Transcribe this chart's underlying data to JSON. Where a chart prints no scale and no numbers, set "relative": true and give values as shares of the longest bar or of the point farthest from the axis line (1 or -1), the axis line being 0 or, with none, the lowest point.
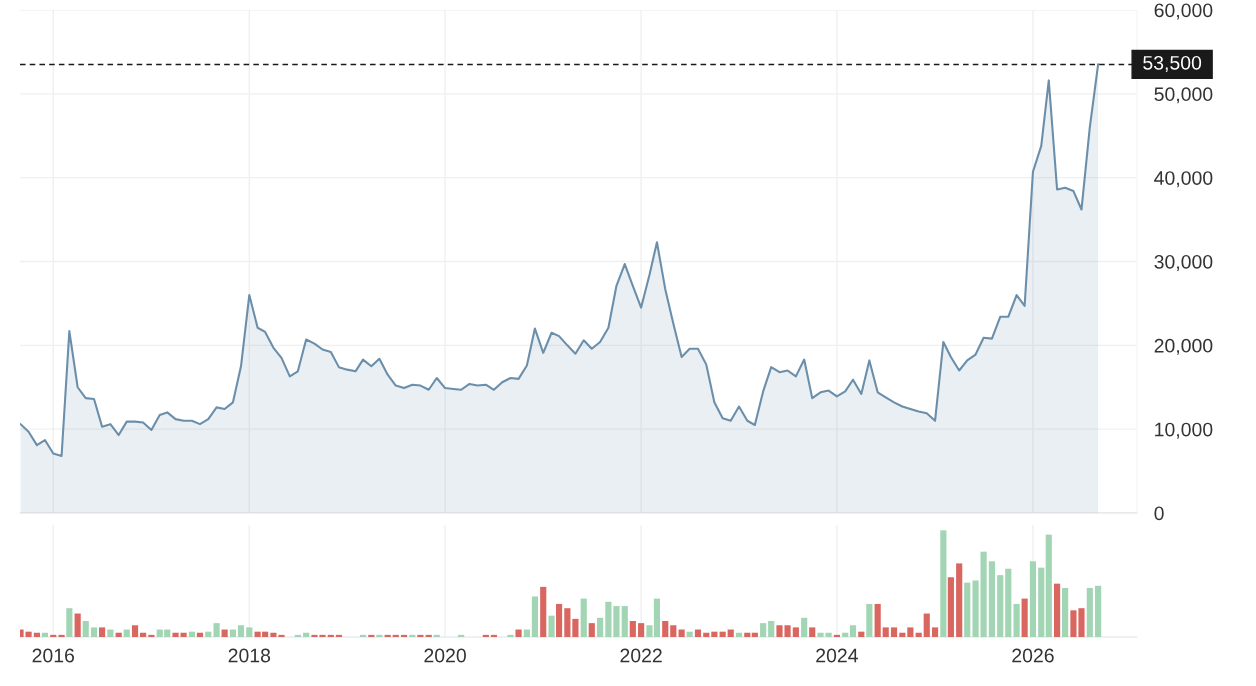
{
  "chart_data": [
    {
      "type": "area",
      "x": [
        "2015-09",
        "2015-10",
        "2015-11",
        "2015-12",
        "2016-01",
        "2016-02",
        "2016-03",
        "2016-04",
        "2016-05",
        "2016-06",
        "2016-07",
        "2016-08",
        "2016-09",
        "2016-10",
        "2016-11",
        "2016-12",
        "2017-01",
        "2017-02",
        "2017-03",
        "2017-04",
        "2017-05",
        "2017-06",
        "2017-07",
        "2017-08",
        "2017-09",
        "2017-10",
        "2017-11",
        "2017-12",
        "2018-01",
        "2018-02",
        "2018-03",
        "2018-04",
        "2018-05",
        "2018-06",
        "2018-07",
        "2018-08",
        "2018-09",
        "2018-10",
        "2018-11",
        "2018-12",
        "2019-01",
        "2019-02",
        "2019-03",
        "2019-04",
        "2019-05",
        "2019-06",
        "2019-07",
        "2019-08",
        "2019-09",
        "2019-10",
        "2019-11",
        "2019-12",
        "2020-01",
        "2020-02",
        "2020-03",
        "2020-04",
        "2020-05",
        "2020-06",
        "2020-07",
        "2020-08",
        "2020-09",
        "2020-10",
        "2020-11",
        "2020-12",
        "2021-01",
        "2021-02",
        "2021-03",
        "2021-04",
        "2021-05",
        "2021-06",
        "2021-07",
        "2021-08",
        "2021-09",
        "2021-10",
        "2021-11",
        "2021-12",
        "2022-01",
        "2022-02",
        "2022-03",
        "2022-04",
        "2022-05",
        "2022-06",
        "2022-07",
        "2022-08",
        "2022-09",
        "2022-10",
        "2022-11",
        "2022-12",
        "2023-01",
        "2023-02",
        "2023-03",
        "2023-04",
        "2023-05",
        "2023-06",
        "2023-07",
        "2023-08",
        "2023-09",
        "2023-10",
        "2023-11",
        "2023-12",
        "2024-01",
        "2024-02",
        "2024-03",
        "2024-04",
        "2024-05",
        "2024-06",
        "2024-07",
        "2024-08",
        "2024-09",
        "2024-10",
        "2024-11",
        "2024-12",
        "2025-01",
        "2025-02",
        "2025-03",
        "2025-04",
        "2025-05",
        "2025-06",
        "2025-07",
        "2025-08",
        "2025-09",
        "2025-10",
        "2025-11",
        "2025-12",
        "2026-01",
        "2026-02",
        "2026-03",
        "2026-04",
        "2026-05",
        "2026-06",
        "2026-07",
        "2026-08",
        "2026-09"
      ],
      "series": [
        {
          "color": "#6b8faa",
          "values": [
            10600,
            9700,
            8100,
            8700,
            7100,
            6800,
            21700,
            15000,
            13700,
            13600,
            10300,
            10600,
            9300,
            10900,
            10900,
            10800,
            9900,
            11700,
            12000,
            11200,
            11000,
            11000,
            10600,
            11200,
            12600,
            12400,
            13200,
            17500,
            26000,
            22100,
            21600,
            19700,
            18500,
            16300,
            16900,
            20700,
            20200,
            19500,
            19200,
            17400,
            17100,
            16900,
            18300,
            17500,
            18400,
            16500,
            15200,
            14900,
            15300,
            15200,
            14700,
            16100,
            14900,
            14800,
            14700,
            15400,
            15200,
            15300,
            14700,
            15600,
            16100,
            16000,
            17600,
            22000,
            19100,
            21500,
            21100,
            20000,
            19000,
            20600,
            19600,
            20400,
            22100,
            27100,
            29700,
            27100,
            24500,
            28400,
            32300,
            26700,
            22600,
            18600,
            19600,
            19600,
            17700,
            13200,
            11300,
            11000,
            12700,
            11000,
            10500,
            14500,
            17400,
            16800,
            17000,
            16300,
            18300,
            13700,
            14400,
            14600,
            13900,
            14500,
            15900,
            14200,
            18200,
            14400,
            13800,
            13200,
            12700,
            12400,
            12100,
            11900,
            11000,
            20400,
            18600,
            17000,
            18200,
            18900,
            20900,
            20800,
            23400,
            23400,
            26000,
            24700,
            40700,
            43800,
            51600,
            38600,
            38800,
            38400,
            36200,
            46000,
            53500
          ]
        }
      ],
      "xlim": [
        "2015-08-30",
        "2027-01-24"
      ],
      "xticks": [
        "2016",
        "2018",
        "2020",
        "2022",
        "2024",
        "2026"
      ],
      "ylim": [
        0,
        60000
      ],
      "yticks": [
        {
          "value": 0,
          "label": "0"
        },
        {
          "value": 10000,
          "label": "10,000"
        },
        {
          "value": 20000,
          "label": "20,000"
        },
        {
          "value": 30000,
          "label": "30,000"
        },
        {
          "value": 40000,
          "label": "40,000"
        },
        {
          "value": 50000,
          "label": "50,000"
        },
        {
          "value": 60000,
          "label": "60,000"
        }
      ],
      "ref_lines": [
        {
          "axis": "y",
          "value": 53500,
          "label": "53,500",
          "color": "#1a1a1a",
          "line_style": "dashed"
        }
      ],
      "grid": true,
      "tick_labels": "y"
    },
    {
      "type": "bar",
      "relative": true,
      "x": [
        "2015-09",
        "2015-10",
        "2015-11",
        "2015-12",
        "2016-01",
        "2016-02",
        "2016-03",
        "2016-04",
        "2016-05",
        "2016-06",
        "2016-07",
        "2016-08",
        "2016-09",
        "2016-10",
        "2016-11",
        "2016-12",
        "2017-01",
        "2017-02",
        "2017-03",
        "2017-04",
        "2017-05",
        "2017-06",
        "2017-07",
        "2017-08",
        "2017-09",
        "2017-10",
        "2017-11",
        "2017-12",
        "2018-01",
        "2018-02",
        "2018-03",
        "2018-04",
        "2018-05",
        "2018-06",
        "2018-07",
        "2018-08",
        "2018-09",
        "2018-10",
        "2018-11",
        "2018-12",
        "2019-01",
        "2019-02",
        "2019-03",
        "2019-04",
        "2019-05",
        "2019-06",
        "2019-07",
        "2019-08",
        "2019-09",
        "2019-10",
        "2019-11",
        "2019-12",
        "2020-01",
        "2020-02",
        "2020-03",
        "2020-04",
        "2020-05",
        "2020-06",
        "2020-07",
        "2020-08",
        "2020-09",
        "2020-10",
        "2020-11",
        "2020-12",
        "2021-01",
        "2021-02",
        "2021-03",
        "2021-04",
        "2021-05",
        "2021-06",
        "2021-07",
        "2021-08",
        "2021-09",
        "2021-10",
        "2021-11",
        "2021-12",
        "2022-01",
        "2022-02",
        "2022-03",
        "2022-04",
        "2022-05",
        "2022-06",
        "2022-07",
        "2022-08",
        "2022-09",
        "2022-10",
        "2022-11",
        "2022-12",
        "2023-01",
        "2023-02",
        "2023-03",
        "2023-04",
        "2023-05",
        "2023-06",
        "2023-07",
        "2023-08",
        "2023-09",
        "2023-10",
        "2023-11",
        "2023-12",
        "2024-01",
        "2024-02",
        "2024-03",
        "2024-04",
        "2024-05",
        "2024-06",
        "2024-07",
        "2024-08",
        "2024-09",
        "2024-10",
        "2024-11",
        "2024-12",
        "2025-01",
        "2025-02",
        "2025-03",
        "2025-04",
        "2025-05",
        "2025-06",
        "2025-07",
        "2025-08",
        "2025-09",
        "2025-10",
        "2025-11",
        "2025-12",
        "2026-01",
        "2026-02",
        "2026-03",
        "2026-04",
        "2026-05",
        "2026-06",
        "2026-07",
        "2026-08",
        "2026-09"
      ],
      "values": [
        0.07,
        0.05,
        0.04,
        0.04,
        0.02,
        0.02,
        0.27,
        0.22,
        0.15,
        0.09,
        0.09,
        0.07,
        0.04,
        0.07,
        0.11,
        0.04,
        0.02,
        0.07,
        0.07,
        0.04,
        0.04,
        0.05,
        0.04,
        0.05,
        0.13,
        0.07,
        0.07,
        0.11,
        0.09,
        0.05,
        0.05,
        0.04,
        0.02,
        null,
        0.02,
        0.04,
        0.02,
        0.02,
        0.02,
        0.02,
        null,
        null,
        0.02,
        0.02,
        0.02,
        0.02,
        0.02,
        0.02,
        0.02,
        0.02,
        0.02,
        0.02,
        null,
        null,
        0.02,
        null,
        null,
        0.02,
        0.02,
        null,
        0.02,
        0.07,
        0.07,
        0.38,
        0.47,
        0.2,
        0.31,
        0.27,
        0.17,
        0.36,
        0.13,
        0.18,
        0.33,
        0.29,
        0.29,
        0.15,
        0.13,
        0.11,
        0.36,
        0.15,
        0.11,
        0.07,
        0.05,
        0.07,
        0.04,
        0.05,
        0.05,
        0.07,
        0.04,
        0.04,
        0.04,
        0.13,
        0.15,
        0.11,
        0.11,
        0.09,
        0.18,
        0.09,
        0.04,
        0.04,
        0.02,
        0.04,
        0.11,
        0.05,
        0.31,
        0.31,
        0.09,
        0.09,
        0.04,
        0.09,
        0.04,
        0.22,
        0.09,
        1,
        0.56,
        0.69,
        0.51,
        0.53,
        0.8,
        0.71,
        0.58,
        0.64,
        0.31,
        0.36,
        0.71,
        0.65,
        0.96,
        0.5,
        0.46,
        0.25,
        0.27,
        0.46,
        0.48
      ],
      "colors": [
        "#d9665f",
        "#d9665f",
        "#d9665f",
        "#a2d5b4",
        "#d9665f",
        "#d9665f",
        "#a2d5b4",
        "#d9665f",
        "#a2d5b4",
        "#a2d5b4",
        "#d9665f",
        "#a2d5b4",
        "#d9665f",
        "#a2d5b4",
        "#d9665f",
        "#d9665f",
        "#d9665f",
        "#a2d5b4",
        "#a2d5b4",
        "#d9665f",
        "#d9665f",
        "#a2d5b4",
        "#d9665f",
        "#a2d5b4",
        "#a2d5b4",
        "#d9665f",
        "#a2d5b4",
        "#a2d5b4",
        "#a2d5b4",
        "#d9665f",
        "#d9665f",
        "#d9665f",
        "#d9665f",
        "#d9665f",
        "#a2d5b4",
        "#a2d5b4",
        "#d9665f",
        "#d9665f",
        "#d9665f",
        "#d9665f",
        "#d9665f",
        "#d9665f",
        "#a2d5b4",
        "#d9665f",
        "#a2d5b4",
        "#d9665f",
        "#d9665f",
        "#d9665f",
        "#a2d5b4",
        "#d9665f",
        "#d9665f",
        "#a2d5b4",
        "#d9665f",
        "#d9665f",
        "#a2d5b4",
        "#d9665f",
        "#d9665f",
        "#d9665f",
        "#d9665f",
        "#d9665f",
        "#a2d5b4",
        "#d9665f",
        "#a2d5b4",
        "#a2d5b4",
        "#d9665f",
        "#a2d5b4",
        "#d9665f",
        "#d9665f",
        "#d9665f",
        "#a2d5b4",
        "#d9665f",
        "#a2d5b4",
        "#a2d5b4",
        "#a2d5b4",
        "#a2d5b4",
        "#d9665f",
        "#d9665f",
        "#a2d5b4",
        "#a2d5b4",
        "#d9665f",
        "#d9665f",
        "#d9665f",
        "#a2d5b4",
        "#d9665f",
        "#d9665f",
        "#d9665f",
        "#d9665f",
        "#d9665f",
        "#a2d5b4",
        "#d9665f",
        "#d9665f",
        "#a2d5b4",
        "#a2d5b4",
        "#d9665f",
        "#d9665f",
        "#d9665f",
        "#a2d5b4",
        "#d9665f",
        "#a2d5b4",
        "#a2d5b4",
        "#d9665f",
        "#a2d5b4",
        "#a2d5b4",
        "#d9665f",
        "#a2d5b4",
        "#d9665f",
        "#d9665f",
        "#d9665f",
        "#d9665f",
        "#d9665f",
        "#d9665f",
        "#d9665f",
        "#d9665f",
        "#a2d5b4",
        "#d9665f",
        "#d9665f",
        "#a2d5b4",
        "#a2d5b4",
        "#a2d5b4",
        "#a2d5b4",
        "#a2d5b4",
        "#a2d5b4",
        "#a2d5b4",
        "#d9665f",
        "#a2d5b4",
        "#a2d5b4",
        "#a2d5b4",
        "#d9665f",
        "#a2d5b4",
        "#d9665f",
        "#d9665f",
        "#a2d5b4",
        "#a2d5b4"
      ],
      "xlim": [
        "2015-08-30",
        "2027-01-24"
      ],
      "xticks": [
        "2016",
        "2018",
        "2020",
        "2022",
        "2024",
        "2026"
      ],
      "grid": "x",
      "tick_labels": "x"
    }
  ]
}
